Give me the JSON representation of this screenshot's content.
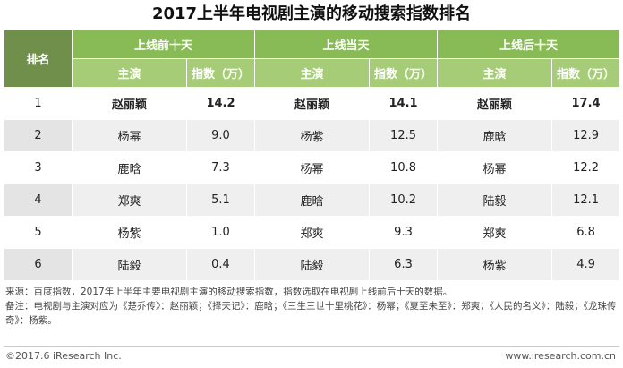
{
  "title": "2017上半年电视剧主演的移动搜索指数排名",
  "header": {
    "rank_label": "排名",
    "groups": [
      "上线前十天",
      "上线当天",
      "上线后十天"
    ],
    "sub_actor": "主演",
    "sub_index": "指数（万）"
  },
  "rows": [
    {
      "rank": "1",
      "cells": [
        "赵丽颖",
        "14.2",
        "赵丽颖",
        "14.1",
        "赵丽颖",
        "17.4"
      ]
    },
    {
      "rank": "2",
      "cells": [
        "杨幂",
        "9.0",
        "杨紫",
        "12.5",
        "鹿晗",
        "12.9"
      ]
    },
    {
      "rank": "3",
      "cells": [
        "鹿晗",
        "7.3",
        "杨幂",
        "10.8",
        "杨幂",
        "12.2"
      ]
    },
    {
      "rank": "4",
      "cells": [
        "郑爽",
        "5.1",
        "鹿晗",
        "10.2",
        "陆毅",
        "12.1"
      ]
    },
    {
      "rank": "5",
      "cells": [
        "杨紫",
        "1.0",
        "郑爽",
        "9.3",
        "郑爽",
        "6.8"
      ]
    },
    {
      "rank": "6",
      "cells": [
        "陆毅",
        "0.4",
        "陆毅",
        "6.3",
        "杨紫",
        "4.9"
      ]
    }
  ],
  "notes": {
    "source": "来源：百度指数，2017年上半年主要电视剧主演的移动搜索指数，指数选取在电视剧上线前后十天的数据。",
    "remark": "备注：电视剧与主演对应为《楚乔传》：赵丽颖；《择天记》：鹿晗；《三生三世十里桃花》：杨幂；《夏至未至》：郑爽；《人民的名义》：陆毅；《龙珠传奇》：杨紫。"
  },
  "footer": {
    "copyright": "©2017.6 iResearch Inc.",
    "site": "www.iresearch.com.cn"
  },
  "colors": {
    "header_dark": "#6f8f4a",
    "header_green": "#88bb55",
    "subheader_green": "#a6cc78",
    "row_alt": "#efefef"
  }
}
